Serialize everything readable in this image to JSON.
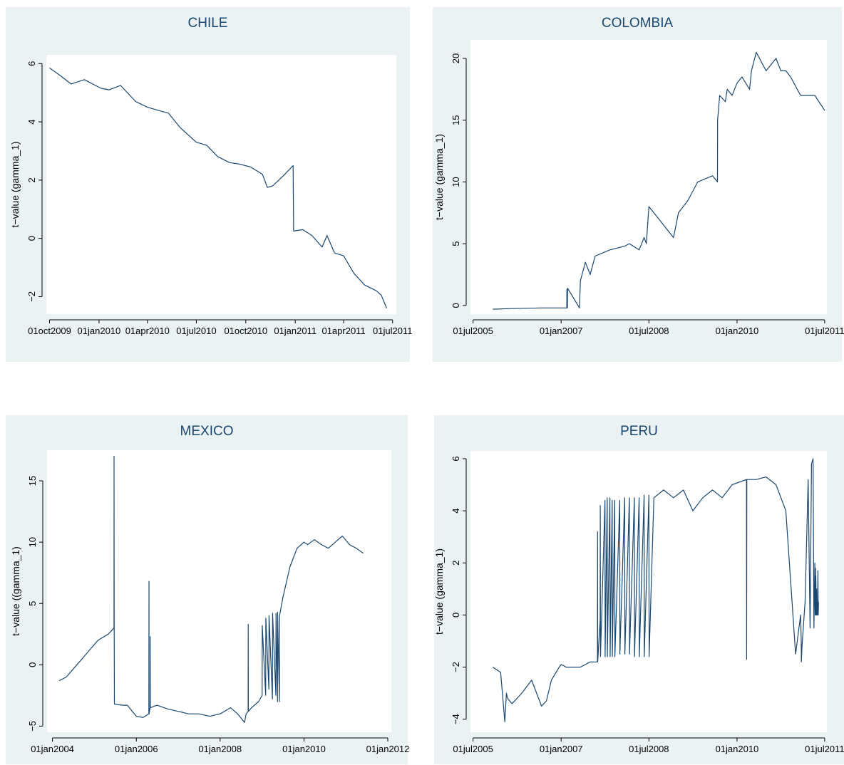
{
  "colors": {
    "panel_bg": "#eaf2f3",
    "plot_bg": "#ffffff",
    "series": "#1a476f",
    "axis": "#000000"
  },
  "chart_data": [
    {
      "type": "line",
      "title": "CHILE",
      "ylabel": "t−value (gamma_1)",
      "xlabel": "",
      "x_is_date": true,
      "xlim": [
        "2009-09-25",
        "2011-07-08"
      ],
      "ylim": [
        -2.6,
        6.3
      ],
      "yticks": [
        -2,
        0,
        2,
        4,
        6
      ],
      "xticks": [
        "2009-10-01",
        "2010-01-01",
        "2010-04-01",
        "2010-07-01",
        "2010-10-01",
        "2011-01-01",
        "2011-04-01",
        "2011-07-01"
      ],
      "xtick_labels": [
        "01oct2009",
        "01jan2010",
        "01apr2010",
        "01jul2010",
        "01oct2010",
        "01jan2011",
        "01apr2011",
        "01jul2011"
      ],
      "grid": false,
      "x": [
        "2009-10-01",
        "2009-10-20",
        "2009-11-10",
        "2009-12-05",
        "2009-12-20",
        "2010-01-05",
        "2010-01-20",
        "2010-02-10",
        "2010-03-10",
        "2010-04-01",
        "2010-04-20",
        "2010-05-10",
        "2010-06-01",
        "2010-07-01",
        "2010-07-20",
        "2010-08-10",
        "2010-09-01",
        "2010-09-20",
        "2010-10-10",
        "2010-11-01",
        "2010-11-10",
        "2010-11-20",
        "2010-12-10",
        "2010-12-28",
        "2010-12-29",
        "2011-01-15",
        "2011-02-01",
        "2011-02-20",
        "2011-03-01",
        "2011-03-15",
        "2011-04-01",
        "2011-04-20",
        "2011-05-10",
        "2011-06-01",
        "2011-06-10",
        "2011-06-20"
      ],
      "y": [
        5.85,
        5.6,
        5.3,
        5.45,
        5.3,
        5.15,
        5.1,
        5.25,
        4.7,
        4.5,
        4.4,
        4.3,
        3.8,
        3.3,
        3.2,
        2.8,
        2.6,
        2.55,
        2.45,
        2.2,
        1.75,
        1.8,
        2.15,
        2.5,
        0.25,
        0.3,
        0.1,
        -0.3,
        0.1,
        -0.5,
        -0.6,
        -1.2,
        -1.6,
        -1.8,
        -1.95,
        -2.4
      ]
    },
    {
      "type": "line",
      "title": "COLOMBIA",
      "ylabel": "t−value (gamma_1)",
      "xlabel": "",
      "x_is_date": true,
      "xlim": [
        "2005-06-15",
        "2011-07-15"
      ],
      "ylim": [
        -0.7,
        21.5
      ],
      "yticks": [
        0,
        5,
        10,
        15,
        20
      ],
      "xticks": [
        "2005-07-01",
        "2007-01-01",
        "2008-07-01",
        "2010-01-01",
        "2011-07-01"
      ],
      "xtick_labels": [
        "01jul2005",
        "01jan2007",
        "01jul2008",
        "01jan2010",
        "01jul2011"
      ],
      "grid": false,
      "x": [
        "2005-11-01",
        "2006-03-01",
        "2006-09-01",
        "2007-01-01",
        "2007-02-05",
        "2007-02-06",
        "2007-02-07",
        "2007-02-08",
        "2007-02-09",
        "2007-02-10",
        "2007-04-25",
        "2007-05-01",
        "2007-06-01",
        "2007-07-01",
        "2007-08-01",
        "2007-11-01",
        "2008-02-01",
        "2008-03-01",
        "2008-05-01",
        "2008-06-01",
        "2008-06-15",
        "2008-07-01",
        "2008-09-01",
        "2008-10-01",
        "2008-12-01",
        "2009-01-01",
        "2009-03-01",
        "2009-05-01",
        "2009-08-01",
        "2009-09-01",
        "2009-09-02",
        "2009-09-15",
        "2009-10-20",
        "2009-11-01",
        "2009-12-01",
        "2010-01-01",
        "2010-02-01",
        "2010-03-20",
        "2010-04-01",
        "2010-05-01",
        "2010-07-01",
        "2010-09-01",
        "2010-10-01",
        "2010-11-01",
        "2010-12-01",
        "2011-02-01",
        "2011-03-01",
        "2011-05-01",
        "2011-07-01"
      ],
      "y": [
        -0.3,
        -0.25,
        -0.2,
        -0.2,
        -0.2,
        1.3,
        -0.2,
        1.1,
        -0.2,
        1.4,
        -0.2,
        2.0,
        3.5,
        2.5,
        4.0,
        4.5,
        4.8,
        5.0,
        4.5,
        5.5,
        5.0,
        8.0,
        7.0,
        6.5,
        5.5,
        7.5,
        8.5,
        10.0,
        10.5,
        10.0,
        15.0,
        17.0,
        16.5,
        17.5,
        17.0,
        18.0,
        18.5,
        17.5,
        19.0,
        20.5,
        19.0,
        20.0,
        19.0,
        19.0,
        18.5,
        17.0,
        17.0,
        17.0,
        15.8
      ]
    },
    {
      "type": "line",
      "title": "MEXICO",
      "ylabel": "t−value ((gamma_1)",
      "xlabel": "",
      "x_is_date": true,
      "xlim": [
        "2003-11-15",
        "2012-02-01"
      ],
      "ylim": [
        -5.5,
        17.5
      ],
      "yticks": [
        -5,
        0,
        5,
        10,
        15
      ],
      "xticks": [
        "2004-01-01",
        "2006-01-01",
        "2008-01-01",
        "2010-01-01",
        "2012-01-01"
      ],
      "xtick_labels": [
        "01jan2004",
        "01jan2006",
        "01jan2008",
        "01jan2010",
        "01jan2012"
      ],
      "grid": false,
      "x": [
        "2004-03-01",
        "2004-05-01",
        "2004-08-01",
        "2004-11-01",
        "2005-02-01",
        "2005-05-01",
        "2005-06-20",
        "2005-06-21",
        "2005-06-22",
        "2005-06-24",
        "2005-09-01",
        "2005-10-15",
        "2006-01-01",
        "2006-03-01",
        "2006-04-20",
        "2006-04-21",
        "2006-04-22",
        "2006-05-01",
        "2006-05-02",
        "2006-05-03",
        "2006-07-01",
        "2006-10-01",
        "2007-01-01",
        "2007-04-01",
        "2007-07-01",
        "2007-10-01",
        "2008-01-01",
        "2008-04-01",
        "2008-06-01",
        "2008-08-01",
        "2008-08-15",
        "2008-09-01",
        "2008-09-02",
        "2008-09-03",
        "2008-10-01",
        "2008-12-01",
        "2009-01-01",
        "2009-01-02",
        "2009-02-01",
        "2009-02-02",
        "2009-03-01",
        "2009-03-02",
        "2009-04-01",
        "2009-04-02",
        "2009-05-01",
        "2009-05-02",
        "2009-05-15",
        "2009-05-16",
        "2009-06-01",
        "2009-06-02",
        "2009-07-01",
        "2009-09-01",
        "2009-11-01",
        "2010-01-01",
        "2010-02-01",
        "2010-04-01",
        "2010-06-01",
        "2010-08-01",
        "2010-10-01",
        "2010-12-01",
        "2011-02-01",
        "2011-04-01",
        "2011-06-01"
      ],
      "y": [
        -1.3,
        -1.0,
        0.0,
        1.0,
        2.0,
        2.5,
        3.0,
        17.0,
        3.0,
        -3.2,
        -3.3,
        -3.3,
        -4.2,
        -4.3,
        -4.0,
        6.8,
        -4.0,
        -3.5,
        2.3,
        -3.5,
        -3.3,
        -3.6,
        -3.8,
        -4.0,
        -4.0,
        -4.2,
        -4.0,
        -3.5,
        -4.0,
        -4.7,
        -4.0,
        -3.8,
        3.3,
        -3.8,
        -3.5,
        -3.0,
        -2.5,
        3.2,
        -2.5,
        3.8,
        -2.0,
        4.0,
        -2.8,
        4.2,
        -2.5,
        4.2,
        -3.0,
        4.3,
        -3.0,
        4.0,
        5.5,
        8.0,
        9.5,
        10.0,
        9.8,
        10.2,
        9.8,
        9.5,
        10.0,
        10.5,
        9.8,
        9.5,
        9.1
      ]
    },
    {
      "type": "line",
      "title": "PERU",
      "ylabel": "t−value (gamma_1)",
      "xlabel": "",
      "x_is_date": true,
      "xlim": [
        "2005-06-15",
        "2011-07-15"
      ],
      "ylim": [
        -4.5,
        6.3
      ],
      "yticks": [
        -4,
        -2,
        0,
        2,
        4,
        6
      ],
      "xticks": [
        "2005-07-01",
        "2007-01-01",
        "2008-07-01",
        "2010-01-01",
        "2011-07-01"
      ],
      "xtick_labels": [
        "01jul2005",
        "01jan2007",
        "01jul2008",
        "01jan2010",
        "01jul2011"
      ],
      "grid": false,
      "x": [
        "2005-11-01",
        "2005-12-20",
        "2006-01-15",
        "2006-01-25",
        "2006-02-01",
        "2006-03-01",
        "2006-04-01",
        "2006-05-01",
        "2006-07-01",
        "2006-09-01",
        "2006-10-01",
        "2006-11-01",
        "2006-12-20",
        "2007-01-01",
        "2007-02-01",
        "2007-03-01",
        "2007-05-01",
        "2007-07-01",
        "2007-08-15",
        "2007-08-16",
        "2007-08-17",
        "2007-09-01",
        "2007-09-02",
        "2007-09-03",
        "2007-10-01",
        "2007-10-02",
        "2007-10-15",
        "2007-10-16",
        "2007-11-01",
        "2007-11-02",
        "2007-11-15",
        "2007-11-16",
        "2007-12-01",
        "2007-12-02",
        "2008-01-01",
        "2008-01-02",
        "2008-02-01",
        "2008-02-02",
        "2008-03-01",
        "2008-03-02",
        "2008-04-01",
        "2008-04-02",
        "2008-05-01",
        "2008-05-02",
        "2008-06-01",
        "2008-06-02",
        "2008-07-01",
        "2008-07-02",
        "2008-08-01",
        "2008-10-01",
        "2008-12-01",
        "2009-02-01",
        "2009-04-01",
        "2009-06-01",
        "2009-08-01",
        "2009-10-01",
        "2009-12-01",
        "2010-03-01",
        "2010-03-02",
        "2010-03-03",
        "2010-05-01",
        "2010-07-01",
        "2010-09-01",
        "2010-11-01",
        "2011-01-01",
        "2011-02-01",
        "2011-02-05",
        "2011-02-06",
        "2011-02-10",
        "2011-03-01",
        "2011-03-20",
        "2011-04-01",
        "2011-04-10",
        "2011-04-20",
        "2011-04-25",
        "2011-05-01",
        "2011-05-03",
        "2011-05-05",
        "2011-05-06",
        "2011-05-07",
        "2011-05-10",
        "2011-05-12",
        "2011-05-14",
        "2011-05-16",
        "2011-05-18",
        "2011-05-20",
        "2011-05-22",
        "2011-05-24"
      ],
      "y": [
        -2.0,
        -2.2,
        -4.1,
        -3.0,
        -3.2,
        -3.4,
        -3.2,
        -3.0,
        -2.5,
        -3.5,
        -3.3,
        -2.5,
        -2.0,
        -1.9,
        -2.0,
        -2.0,
        -2.0,
        -1.8,
        -1.8,
        3.2,
        -1.8,
        -0.2,
        4.2,
        -1.6,
        4.4,
        -1.6,
        4.5,
        -1.6,
        4.5,
        -1.6,
        4.4,
        -1.6,
        4.4,
        -1.6,
        4.4,
        -1.5,
        4.5,
        -1.5,
        4.5,
        -1.5,
        4.5,
        -1.6,
        4.5,
        -1.6,
        4.6,
        -1.6,
        4.6,
        -1.6,
        4.5,
        4.8,
        4.5,
        4.8,
        4.0,
        4.5,
        4.8,
        4.5,
        5.0,
        5.2,
        -1.7,
        5.2,
        5.2,
        5.3,
        5.0,
        4.0,
        -1.5,
        0.0,
        -1.0,
        -1.8,
        -1.2,
        0.5,
        5.2,
        -0.5,
        5.8,
        6.0,
        -0.5,
        2.0,
        0.0,
        1.8,
        0.0,
        1.5,
        0.0,
        1.0,
        0.0,
        0.5,
        0.0,
        1.7,
        0.0,
        0.5
      ]
    }
  ]
}
